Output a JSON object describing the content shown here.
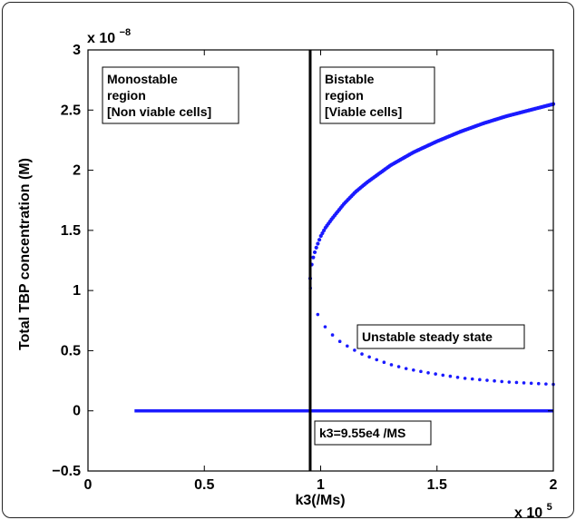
{
  "chart_data": {
    "type": "scatter",
    "title": "",
    "xlabel": "k3(/Ms)",
    "ylabel": "Total TBP concentration (M)",
    "xlim": [
      0,
      200000
    ],
    "ylim": [
      -5e-09,
      3e-08
    ],
    "x_ticks": [
      0,
      50000,
      100000,
      150000,
      200000
    ],
    "x_tick_labels": [
      "0",
      "0.5",
      "1",
      "1.5",
      "2"
    ],
    "y_ticks": [
      -5e-09,
      0,
      5e-09,
      1e-08,
      1.5e-08,
      2e-08,
      2.5e-08,
      3e-08
    ],
    "y_tick_labels": [
      "−0.5",
      "0",
      "0.5",
      "1",
      "1.5",
      "2",
      "2.5",
      "3"
    ],
    "x_multiplier": {
      "base": "x 10",
      "exp": "5"
    },
    "y_multiplier": {
      "base": "x 10",
      "exp": "−8"
    },
    "grid": false,
    "colors": {
      "series": "#1a1aff",
      "bifurcation_line": "#000000"
    },
    "bifurcation_line": {
      "x": 95500,
      "label": "k3=9.55e4 /MS"
    },
    "series": [
      {
        "style": "upper-stable-solid",
        "x": [
          95500,
          95600,
          96000,
          96500,
          97000,
          98000,
          99000,
          100000,
          102000,
          105000,
          110000,
          115000,
          120000,
          130000,
          140000,
          150000,
          160000,
          170000,
          180000,
          190000,
          200000
        ],
        "y": [
          1.1e-08,
          1.14e-08,
          1.2e-08,
          1.25e-08,
          1.29e-08,
          1.35e-08,
          1.4e-08,
          1.45e-08,
          1.52e-08,
          1.6e-08,
          1.72e-08,
          1.82e-08,
          1.9e-08,
          2.04e-08,
          2.15e-08,
          2.24e-08,
          2.32e-08,
          2.39e-08,
          2.45e-08,
          2.5e-08,
          2.55e-08
        ]
      },
      {
        "style": "unstable-dotted",
        "x": [
          95600,
          96500,
          97500,
          99000,
          101000,
          104000,
          108000,
          113000,
          118000,
          124000,
          130000,
          137000,
          145000,
          153000,
          162000,
          171000,
          180000,
          190000,
          200000
        ],
        "y": [
          1.02e-08,
          9.3e-09,
          8.6e-09,
          7.9e-09,
          7.2e-09,
          6.5e-09,
          5.8e-09,
          5.2e-09,
          4.7e-09,
          4.25e-09,
          3.85e-09,
          3.5e-09,
          3.2e-09,
          2.95e-09,
          2.7e-09,
          2.55e-09,
          2.4e-09,
          2.3e-09,
          2.2e-09
        ]
      },
      {
        "style": "zero-stable-solid",
        "x": [
          20000,
          200000
        ],
        "y": [
          0,
          0
        ]
      }
    ],
    "annotations": [
      {
        "id": "monostable",
        "lines": [
          "Monostable",
          "region",
          "[Non viable cells]"
        ]
      },
      {
        "id": "bistable",
        "lines": [
          "Bistable",
          "region",
          "[Viable cells]"
        ]
      },
      {
        "id": "unstable",
        "lines": [
          "Unstable steady state"
        ]
      }
    ]
  }
}
